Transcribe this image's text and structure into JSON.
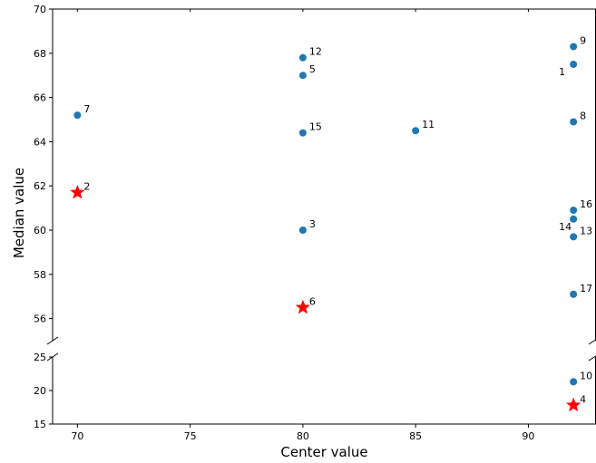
{
  "chart_data": {
    "type": "scatter",
    "title": "",
    "xlabel": "Center value",
    "ylabel": "Median value",
    "xlim": [
      68.9,
      93
    ],
    "x_ticks": [
      70,
      75,
      80,
      85,
      90
    ],
    "broken_y_axis": true,
    "ylim_upper": [
      55,
      70
    ],
    "ylim_lower": [
      15,
      25
    ],
    "y_ticks_upper": [
      56,
      58,
      60,
      62,
      64,
      66,
      68,
      70
    ],
    "y_ticks_lower": [
      15,
      20,
      25
    ],
    "grid": false,
    "series": [
      {
        "marker": "circle",
        "color": "#1f77b4",
        "points": [
          {
            "x": 92,
            "y": 67.5,
            "label": "1"
          },
          {
            "x": 80,
            "y": 60.0,
            "label": "3"
          },
          {
            "x": 80,
            "y": 67.0,
            "label": "5"
          },
          {
            "x": 70,
            "y": 65.2,
            "label": "7"
          },
          {
            "x": 92,
            "y": 64.9,
            "label": "8"
          },
          {
            "x": 92,
            "y": 68.3,
            "label": "9"
          },
          {
            "x": 92,
            "y": 21.3,
            "label": "10"
          },
          {
            "x": 85,
            "y": 64.5,
            "label": "11"
          },
          {
            "x": 80,
            "y": 67.8,
            "label": "12"
          },
          {
            "x": 92,
            "y": 59.7,
            "label": "13"
          },
          {
            "x": 92,
            "y": 60.5,
            "label": "14"
          },
          {
            "x": 80,
            "y": 64.4,
            "label": "15"
          },
          {
            "x": 92,
            "y": 60.9,
            "label": "16"
          },
          {
            "x": 92,
            "y": 57.1,
            "label": "17"
          }
        ]
      },
      {
        "marker": "star",
        "color": "#ff0000",
        "points": [
          {
            "x": 70,
            "y": 61.7,
            "label": "2"
          },
          {
            "x": 92,
            "y": 17.8,
            "label": "4"
          },
          {
            "x": 80,
            "y": 56.5,
            "label": "6"
          }
        ]
      }
    ]
  }
}
